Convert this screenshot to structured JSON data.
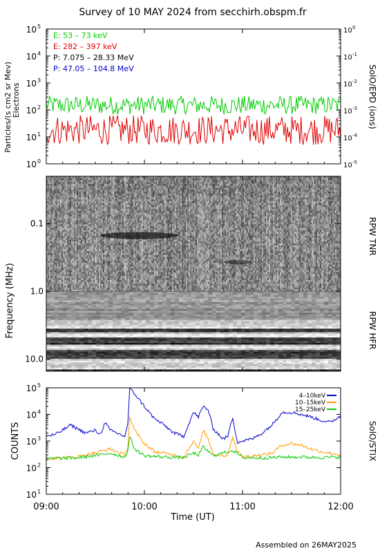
{
  "title": "Survey of 10 MAY 2024 from secchirh.obspm.fr",
  "footer": "Assembled on 26MAY2025",
  "x_axis": {
    "label": "Time (UT)",
    "ticks": [
      "09:00",
      "10:00",
      "11:00",
      "12:00"
    ],
    "range": [
      "09:00",
      "12:00"
    ]
  },
  "panel_labels": {
    "epd_ylabel_1": "Particles/(s cm2 sr Mev)",
    "epd_ylabel_2": "Electrons",
    "epd_right": "SolO/EPD (ions)",
    "freq_ylabel": "Frequency (MHz)",
    "tnr": "RPW TNR",
    "hfr": "RPW HFR",
    "stix_ylabel": "COUNTS",
    "stix_right": "SolO/STIX"
  },
  "chart_data": [
    {
      "type": "line",
      "name": "EPD particles",
      "y_scale": "log",
      "ylim": [
        1,
        100000
      ],
      "y_ticks": [
        "10",
        "10",
        "10",
        "10",
        "10",
        "10"
      ],
      "y_tick_exponents": [
        "0",
        "1",
        "2",
        "3",
        "4",
        "5"
      ],
      "y2_scale": "log",
      "y2lim": [
        1e-05,
        1
      ],
      "y2_ticks": [
        "10",
        "10",
        "10",
        "10",
        "10",
        "10"
      ],
      "y2_tick_exponents": [
        "-5",
        "-4",
        "-3",
        "-2",
        "-1",
        "0"
      ],
      "legend": [
        {
          "label": "E: 53 – 73 keV",
          "color": "#00cc00"
        },
        {
          "label": "E: 282 – 397 keV",
          "color": "#dd0000"
        },
        {
          "label": "P: 7.075 – 28.33 MeV",
          "color": "#000000"
        },
        {
          "label": "P: 47.05 – 104.8 MeV",
          "color": "#0000cc"
        }
      ],
      "series": [
        {
          "name": "E: 53 – 73 keV",
          "color": "#00cc00",
          "level": 150,
          "spread_decades": 0.35
        },
        {
          "name": "E: 282 – 397 keV",
          "color": "#dd0000",
          "level": 18,
          "spread_decades": 0.55
        }
      ]
    },
    {
      "type": "heatmap",
      "name": "RPW spectrogram",
      "y_scale": "log",
      "ylim": [
        0.02,
        15
      ],
      "y_ticks": [
        "0.1",
        "1.0",
        "10.0"
      ],
      "sub_panels": [
        "RPW TNR",
        "RPW HFR"
      ]
    },
    {
      "type": "line",
      "name": "STIX counts",
      "y_scale": "log",
      "ylim": [
        10,
        100000
      ],
      "y_ticks": [
        "10",
        "10",
        "10",
        "10",
        "10"
      ],
      "y_tick_exponents": [
        "1",
        "2",
        "3",
        "4",
        "5"
      ],
      "legend_position": "top-right",
      "series": [
        {
          "name": "4–10keV",
          "color": "#0000cc",
          "t": [
            9.0,
            9.1,
            9.25,
            9.4,
            9.5,
            9.55,
            9.6,
            9.65,
            9.75,
            9.8,
            9.83,
            9.85,
            9.9,
            10.0,
            10.1,
            10.2,
            10.3,
            10.4,
            10.5,
            10.55,
            10.6,
            10.65,
            10.7,
            10.8,
            10.85,
            10.9,
            10.92,
            10.95,
            11.0,
            11.1,
            11.2,
            11.3,
            11.4,
            11.5,
            11.6,
            11.7,
            11.8,
            11.9,
            12.0
          ],
          "y": [
            1500,
            1800,
            4000,
            2000,
            2500,
            1800,
            5000,
            2500,
            1800,
            1500,
            4000,
            90000,
            60000,
            20000,
            7000,
            4000,
            2000,
            1500,
            12000,
            8000,
            20000,
            15000,
            3000,
            1200,
            1500,
            8000,
            3000,
            900,
            1000,
            1200,
            2000,
            4000,
            12000,
            12000,
            10000,
            8000,
            6000,
            5000,
            9000
          ]
        },
        {
          "name": "10–15keV",
          "color": "#ff9900",
          "t": [
            9.0,
            9.3,
            9.55,
            9.65,
            9.8,
            9.83,
            9.85,
            9.9,
            10.0,
            10.1,
            10.2,
            10.3,
            10.4,
            10.5,
            10.55,
            10.6,
            10.65,
            10.7,
            10.8,
            10.85,
            10.9,
            10.95,
            11.0,
            11.1,
            11.2,
            11.3,
            11.4,
            11.5,
            11.6,
            11.7,
            11.8,
            11.9,
            12.0
          ],
          "y": [
            220,
            250,
            400,
            500,
            300,
            600,
            8000,
            2500,
            800,
            400,
            350,
            300,
            250,
            1000,
            500,
            2500,
            1200,
            350,
            280,
            300,
            1500,
            400,
            250,
            280,
            300,
            350,
            700,
            800,
            700,
            500,
            400,
            350,
            300
          ]
        },
        {
          "name": "15–25keV",
          "color": "#00cc00",
          "t": [
            9.0,
            9.3,
            9.55,
            9.65,
            9.8,
            9.83,
            9.85,
            9.9,
            10.0,
            10.2,
            10.4,
            10.5,
            10.55,
            10.6,
            10.7,
            10.9,
            11.0,
            11.2,
            11.4,
            11.6,
            11.8,
            12.0
          ],
          "y": [
            220,
            230,
            300,
            350,
            250,
            400,
            1500,
            500,
            280,
            250,
            240,
            350,
            300,
            600,
            280,
            450,
            240,
            230,
            250,
            250,
            240,
            250
          ]
        }
      ]
    }
  ]
}
